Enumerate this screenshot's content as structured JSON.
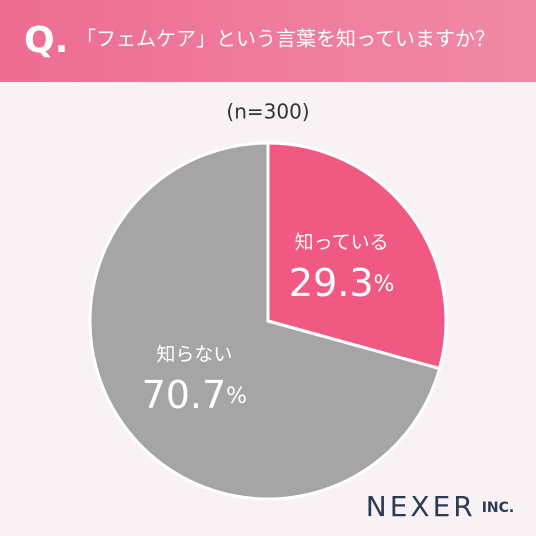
{
  "chart_data": {
    "type": "pie",
    "question_mark": "Q.",
    "title": "「フェムケア」という言葉を知っていますか？",
    "subtitle": "(n=300)",
    "categories": [
      "知っている",
      "知らない"
    ],
    "values": [
      29.3,
      70.7
    ],
    "value_labels": [
      "29.3%",
      "70.7%"
    ],
    "colors": [
      "#f05a82",
      "#a5a5a5"
    ]
  },
  "logo": {
    "name": "NEXER",
    "suffix": "INC."
  }
}
